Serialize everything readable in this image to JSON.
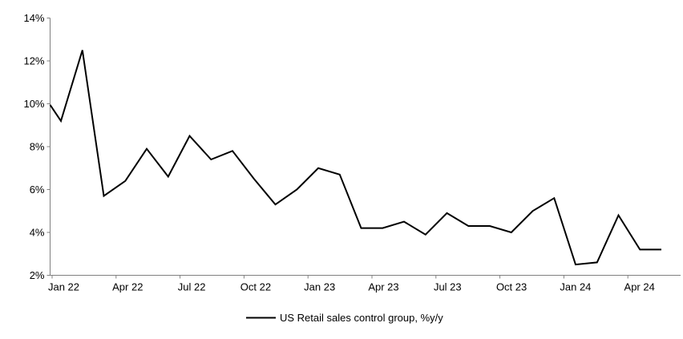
{
  "chart_data": {
    "type": "line",
    "title": "",
    "grid": false,
    "axis_color": "#808080",
    "line_color": "#000000",
    "line_width": 2,
    "legend": {
      "label": "US Retail sales control group, %y/y",
      "position": "bottom-center",
      "sample": "line"
    },
    "y_axis": {
      "min": 2,
      "max": 14,
      "tick_step": 2,
      "unit": "%",
      "tick_labels": [
        "2%",
        "4%",
        "6%",
        "8%",
        "10%",
        "12%",
        "14%"
      ]
    },
    "x_axis": {
      "tick_labels": [
        "Jan 22",
        "Apr 22",
        "Jul 22",
        "Oct 22",
        "Jan 23",
        "Apr 23",
        "Jul 23",
        "Oct 23",
        "Jan 24",
        "Apr 24"
      ],
      "months_per_tick": 3
    },
    "x": [
      "Jan 22",
      "Feb 22",
      "Mar 22",
      "Apr 22",
      "May 22",
      "Jun 22",
      "Jul 22",
      "Aug 22",
      "Sep 22",
      "Oct 22",
      "Nov 22",
      "Dec 22",
      "Jan 23",
      "Feb 23",
      "Mar 23",
      "Apr 23",
      "May 23",
      "Jun 23",
      "Jul 23",
      "Aug 23",
      "Sep 23",
      "Oct 23",
      "Nov 23",
      "Dec 23",
      "Jan 24",
      "Feb 24",
      "Mar 24",
      "Apr 24",
      "May 24"
    ],
    "series": [
      {
        "name": "US Retail sales control group, %y/y",
        "values": [
          9.2,
          12.5,
          5.7,
          6.4,
          7.9,
          6.6,
          8.5,
          7.4,
          7.8,
          6.5,
          5.3,
          6.0,
          7.0,
          6.7,
          4.2,
          4.2,
          4.5,
          3.9,
          4.9,
          4.3,
          4.3,
          4.0,
          5.0,
          5.6,
          2.5,
          2.6,
          4.8,
          3.2,
          3.2
        ]
      }
    ],
    "left_edge_clipped_start_value": 9.95
  }
}
